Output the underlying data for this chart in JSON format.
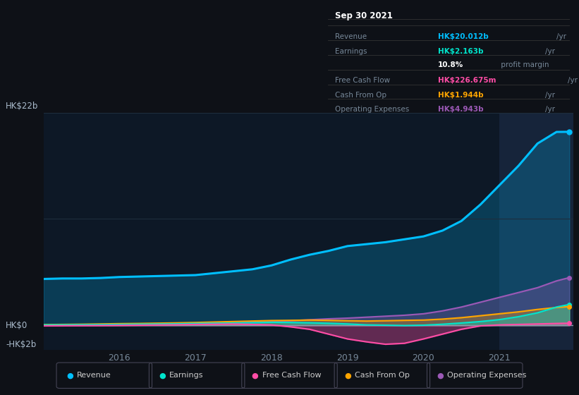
{
  "background_color": "#0e1117",
  "plot_bg_color": "#0d1826",
  "highlight_bg_color": "#16243a",
  "grid_color": "#1e2d3d",
  "zero_line_color": "#8899aa",
  "years": [
    2015.0,
    2015.25,
    2015.5,
    2015.75,
    2016.0,
    2016.25,
    2016.5,
    2016.75,
    2017.0,
    2017.25,
    2017.5,
    2017.75,
    2018.0,
    2018.25,
    2018.5,
    2018.75,
    2019.0,
    2019.25,
    2019.5,
    2019.75,
    2020.0,
    2020.25,
    2020.5,
    2020.75,
    2021.0,
    2021.25,
    2021.5,
    2021.75,
    2021.92
  ],
  "revenue": [
    4.8,
    4.85,
    4.85,
    4.9,
    5.0,
    5.05,
    5.1,
    5.15,
    5.2,
    5.4,
    5.6,
    5.8,
    6.2,
    6.8,
    7.3,
    7.7,
    8.2,
    8.4,
    8.6,
    8.9,
    9.2,
    9.8,
    10.8,
    12.5,
    14.5,
    16.5,
    18.8,
    20.0,
    20.012
  ],
  "earnings": [
    0.05,
    0.06,
    0.07,
    0.08,
    0.1,
    0.12,
    0.14,
    0.16,
    0.2,
    0.22,
    0.25,
    0.28,
    0.32,
    0.3,
    0.27,
    0.22,
    0.15,
    0.05,
    0.02,
    -0.02,
    0.02,
    0.12,
    0.25,
    0.4,
    0.6,
    0.9,
    1.3,
    1.9,
    2.163
  ],
  "free_cash_flow": [
    -0.05,
    -0.04,
    -0.03,
    -0.02,
    0.0,
    0.02,
    0.04,
    0.06,
    0.1,
    0.12,
    0.14,
    0.1,
    0.05,
    -0.15,
    -0.4,
    -0.9,
    -1.4,
    -1.7,
    -1.95,
    -1.85,
    -1.4,
    -0.9,
    -0.4,
    -0.05,
    0.05,
    0.1,
    0.15,
    0.2,
    0.227
  ],
  "cash_from_op": [
    0.08,
    0.1,
    0.12,
    0.15,
    0.18,
    0.2,
    0.23,
    0.26,
    0.3,
    0.35,
    0.4,
    0.45,
    0.5,
    0.52,
    0.55,
    0.52,
    0.48,
    0.45,
    0.48,
    0.52,
    0.55,
    0.65,
    0.8,
    1.0,
    1.2,
    1.4,
    1.65,
    1.85,
    1.944
  ],
  "operating_expenses": [
    0.04,
    0.05,
    0.06,
    0.07,
    0.09,
    0.11,
    0.14,
    0.17,
    0.2,
    0.24,
    0.28,
    0.33,
    0.38,
    0.48,
    0.58,
    0.68,
    0.75,
    0.85,
    0.95,
    1.05,
    1.2,
    1.5,
    1.9,
    2.4,
    2.9,
    3.4,
    3.9,
    4.6,
    4.943
  ],
  "revenue_color": "#00bfff",
  "earnings_color": "#00e5cc",
  "free_cash_flow_color": "#ff4da6",
  "cash_from_op_color": "#ffa500",
  "operating_expenses_color": "#9b59b6",
  "highlight_x_start": 2021.0,
  "ylim_min": -2.5,
  "ylim_max": 22.0,
  "xticks": [
    2016,
    2017,
    2018,
    2019,
    2020,
    2021
  ],
  "info_box": {
    "title": "Sep 30 2021",
    "rows": [
      {
        "label": "Revenue",
        "value": "HK$20.012b",
        "unit": "/yr",
        "color": "#00bfff"
      },
      {
        "label": "Earnings",
        "value": "HK$2.163b",
        "unit": "/yr",
        "color": "#00e5cc"
      },
      {
        "label": "",
        "value": "10.8%",
        "unit": " profit margin",
        "color": "#ffffff"
      },
      {
        "label": "Free Cash Flow",
        "value": "HK$226.675m",
        "unit": "/yr",
        "color": "#ff4da6"
      },
      {
        "label": "Cash From Op",
        "value": "HK$1.944b",
        "unit": "/yr",
        "color": "#ffa500"
      },
      {
        "label": "Operating Expenses",
        "value": "HK$4.943b",
        "unit": "/yr",
        "color": "#9b59b6"
      }
    ]
  },
  "legend_items": [
    {
      "label": "Revenue",
      "color": "#00bfff"
    },
    {
      "label": "Earnings",
      "color": "#00e5cc"
    },
    {
      "label": "Free Cash Flow",
      "color": "#ff4da6"
    },
    {
      "label": "Cash From Op",
      "color": "#ffa500"
    },
    {
      "label": "Operating Expenses",
      "color": "#9b59b6"
    }
  ]
}
